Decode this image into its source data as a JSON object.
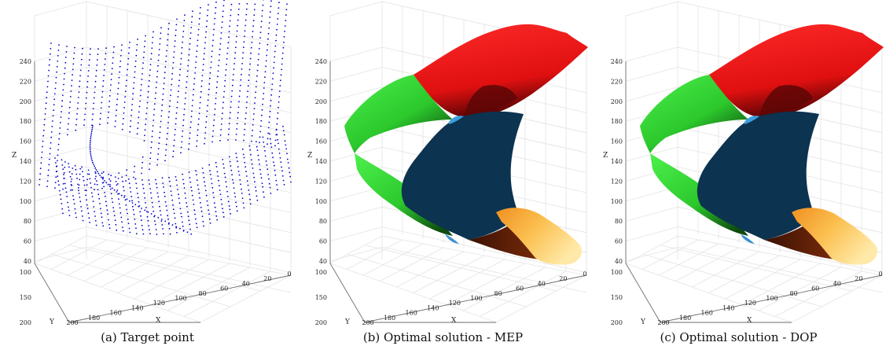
{
  "panels": [
    {
      "id": "a",
      "caption": "(a) Target point",
      "kind": "points"
    },
    {
      "id": "b",
      "caption": "(b) Optimal solution - MEP",
      "kind": "surface"
    },
    {
      "id": "c",
      "caption": "(c) Optimal solution - DOP",
      "kind": "surface"
    }
  ],
  "axes": {
    "z_label": "Z",
    "y_label": "Y",
    "x_label": "X",
    "z_ticks": [
      "240",
      "220",
      "200",
      "180",
      "160",
      "140",
      "120",
      "100",
      "80",
      "60",
      "40"
    ],
    "y_ticks": [
      "100",
      "150",
      "200"
    ],
    "x_ticks": [
      "200",
      "180",
      "160",
      "140",
      "120",
      "100",
      "80",
      "60",
      "40",
      "20",
      "0"
    ]
  },
  "colors": {
    "points": "#0000cc",
    "patch_red": "#ee1111",
    "patch_green": "#33dd33",
    "patch_navy": "#0c3350",
    "patch_orange": "#f7b03a",
    "axis_grid": "#e3e3e3",
    "axis_line": "#6e6e6e"
  }
}
